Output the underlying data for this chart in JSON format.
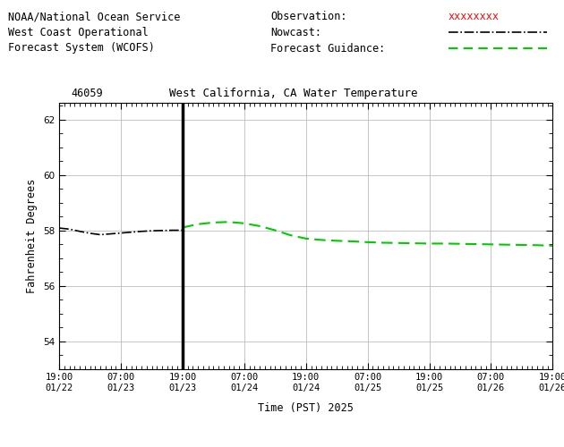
{
  "title_station": "46059",
  "title_main": "West California, CA Water Temperature",
  "header_line1": "NOAA/National Ocean Service",
  "header_line2": "West Coast Operational",
  "header_line3": "Forecast System (WCOFS)",
  "ylabel": "Fahrenheit Degrees",
  "xlabel": "Time (PST) 2025",
  "ylim": [
    53.0,
    62.6
  ],
  "yticks": [
    54,
    56,
    58,
    60,
    62
  ],
  "bg_color": "#ffffff",
  "grid_color": "#bbbbbb",
  "vline_x": 24,
  "vline_color": "#000000",
  "legend_obs_label": "Observation:",
  "legend_nowcast_label": "Nowcast:",
  "legend_forecast_label": "Forecast Guidance:",
  "obs_color": "#ff0000",
  "nowcast_color": "#000000",
  "forecast_color": "#00cc00",
  "x_tick_labels": [
    "19:00\n01/22",
    "07:00\n01/23",
    "19:00\n01/23",
    "07:00\n01/24",
    "19:00\n01/24",
    "07:00\n01/25",
    "19:00\n01/25",
    "07:00\n01/26",
    "19:00\n01/26"
  ],
  "x_tick_positions": [
    0,
    12,
    24,
    36,
    48,
    60,
    72,
    84,
    96
  ],
  "nowcast_x": [
    0,
    2,
    4,
    6,
    8,
    10,
    12,
    14,
    16,
    18,
    20,
    22,
    24
  ],
  "nowcast_y": [
    58.08,
    58.04,
    57.96,
    57.89,
    57.84,
    57.87,
    57.9,
    57.93,
    57.96,
    57.98,
    57.99,
    58.0,
    58.0
  ],
  "forecast_x": [
    24,
    27,
    30,
    33,
    36,
    39,
    42,
    45,
    48,
    51,
    54,
    57,
    60,
    63,
    66,
    69,
    72,
    75,
    78,
    81,
    84,
    87,
    90,
    93,
    96
  ],
  "forecast_y": [
    58.1,
    58.22,
    58.28,
    58.3,
    58.25,
    58.15,
    58.0,
    57.82,
    57.7,
    57.65,
    57.62,
    57.6,
    57.57,
    57.55,
    57.54,
    57.53,
    57.52,
    57.52,
    57.51,
    57.5,
    57.49,
    57.48,
    57.47,
    57.46,
    57.44
  ]
}
